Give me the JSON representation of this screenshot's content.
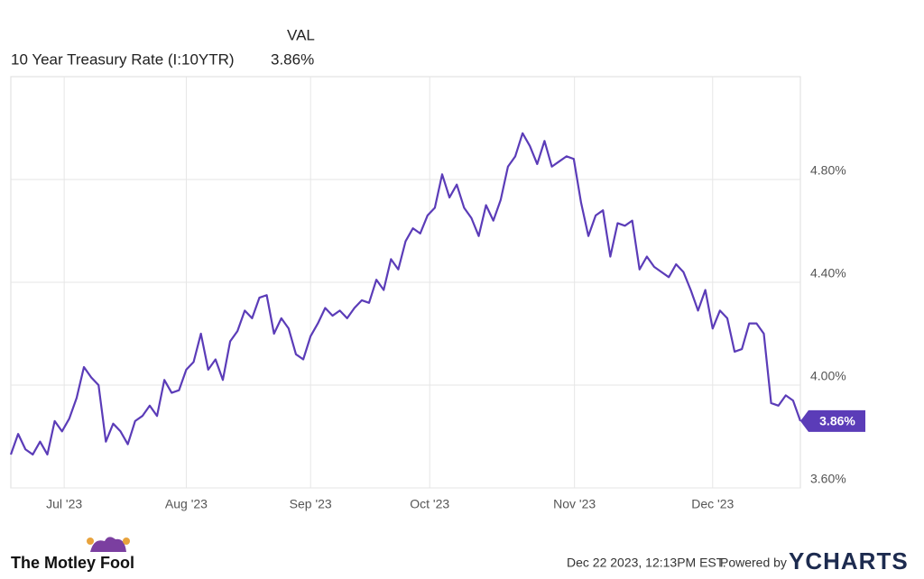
{
  "chart_data": {
    "type": "line",
    "legend_header": "VAL",
    "series": [
      {
        "name": "10 Year Treasury Rate (I:10YTR)",
        "color": "#5b3cb8",
        "current_value": "3.86%",
        "values": [
          3.73,
          3.81,
          3.75,
          3.73,
          3.78,
          3.73,
          3.86,
          3.82,
          3.87,
          3.95,
          4.07,
          4.03,
          4.0,
          3.78,
          3.85,
          3.82,
          3.77,
          3.86,
          3.88,
          3.92,
          3.88,
          4.02,
          3.97,
          3.98,
          4.06,
          4.09,
          4.2,
          4.06,
          4.1,
          4.02,
          4.17,
          4.21,
          4.29,
          4.26,
          4.34,
          4.35,
          4.2,
          4.26,
          4.22,
          4.12,
          4.1,
          4.19,
          4.24,
          4.3,
          4.27,
          4.29,
          4.26,
          4.3,
          4.33,
          4.32,
          4.41,
          4.37,
          4.49,
          4.45,
          4.56,
          4.61,
          4.59,
          4.66,
          4.69,
          4.82,
          4.73,
          4.78,
          4.69,
          4.65,
          4.58,
          4.7,
          4.64,
          4.72,
          4.85,
          4.89,
          4.98,
          4.93,
          4.86,
          4.95,
          4.85,
          4.87,
          4.89,
          4.88,
          4.71,
          4.58,
          4.66,
          4.68,
          4.5,
          4.63,
          4.62,
          4.64,
          4.45,
          4.5,
          4.46,
          4.44,
          4.42,
          4.47,
          4.44,
          4.37,
          4.29,
          4.37,
          4.22,
          4.29,
          4.26,
          4.13,
          4.14,
          4.24,
          4.24,
          4.2,
          3.93,
          3.92,
          3.96,
          3.94,
          3.86
        ]
      }
    ],
    "xlim": [
      0,
      108
    ],
    "xticks": [
      {
        "value": 7.3,
        "label": "Jul '23"
      },
      {
        "value": 24,
        "label": "Aug '23"
      },
      {
        "value": 41,
        "label": "Sep '23"
      },
      {
        "value": 57.3,
        "label": "Oct '23"
      },
      {
        "value": 77.1,
        "label": "Nov '23"
      },
      {
        "value": 96,
        "label": "Dec '23"
      }
    ],
    "ylim": [
      3.6,
      5.2
    ],
    "yticks": [
      {
        "value": 3.6,
        "label": "3.60%"
      },
      {
        "value": 4.0,
        "label": "4.00%"
      },
      {
        "value": 4.4,
        "label": "4.40%"
      },
      {
        "value": 4.8,
        "label": "4.80%"
      }
    ],
    "grid": true
  },
  "footer": {
    "brand": "The Motley Fool",
    "timestamp": "Dec 22 2023, 12:13PM EST.",
    "powered_by": "Powered by",
    "provider": "YCHARTS"
  }
}
